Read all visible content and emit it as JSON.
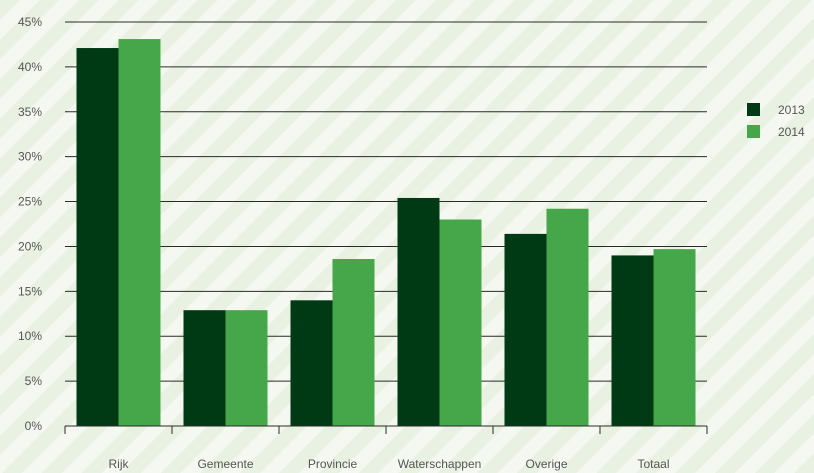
{
  "chart_data": {
    "type": "bar",
    "categories": [
      "Rijk",
      "Gemeente",
      "Provincie",
      "Waterschappen",
      "Overige",
      "Totaal"
    ],
    "series": [
      {
        "name": "2013",
        "values": [
          42.1,
          12.9,
          14.0,
          25.4,
          21.4,
          19.0
        ],
        "color": "#003a15"
      },
      {
        "name": "2014",
        "values": [
          43.1,
          12.9,
          18.6,
          23.0,
          24.2,
          19.7
        ],
        "color": "#46a64a"
      }
    ],
    "yticks": [
      "0%",
      "5%",
      "10%",
      "15%",
      "20%",
      "25%",
      "30%",
      "35%",
      "40%",
      "45%"
    ],
    "ylim": [
      0,
      45
    ],
    "grid": true,
    "legend_position": "right",
    "title": "",
    "xlabel": "",
    "ylabel": ""
  }
}
